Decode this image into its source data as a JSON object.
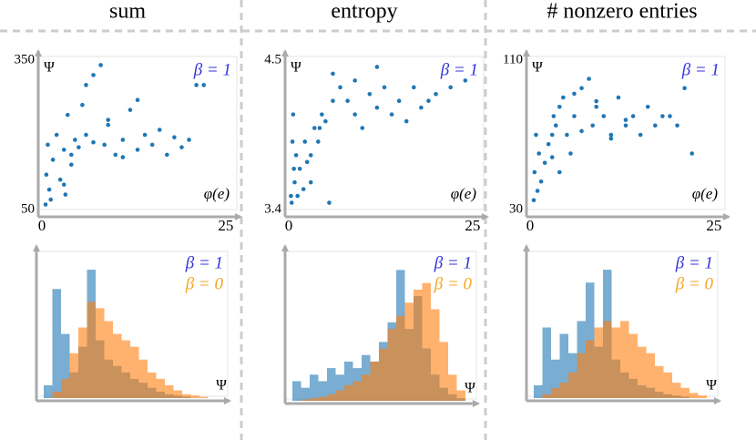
{
  "chart_data": [
    {
      "type": "scatter",
      "title": "sum",
      "x_label": "φ(e)",
      "y_label": "Ψ",
      "xlim": [
        0,
        26
      ],
      "ylim": [
        50,
        350
      ],
      "xticks": [
        0,
        25
      ],
      "yticks": [
        50,
        350
      ],
      "series": [
        {
          "name": "β = 1",
          "color": "#1f77b4",
          "legend_color": "#3333dd",
          "x": [
            0.5,
            0.6,
            0.8,
            1,
            1.2,
            1.5,
            2,
            2.5,
            3,
            3.2,
            3.5,
            4,
            4.5,
            5,
            5.5,
            6,
            7,
            8,
            8.5,
            9,
            10,
            11,
            12,
            13,
            14,
            15,
            16,
            17,
            18,
            19,
            20,
            21,
            4,
            6,
            9,
            13,
            22,
            7,
            3,
            11
          ],
          "y": [
            60,
            120,
            180,
            90,
            70,
            150,
            200,
            110,
            170,
            80,
            240,
            160,
            190,
            175,
            260,
            200,
            320,
            340,
            180,
            220,
            160,
            190,
            250,
            170,
            200,
            180,
            210,
            160,
            195,
            175,
            190,
            300,
            140,
            300,
            230,
            270,
            300,
            185,
            100,
            155
          ]
        }
      ]
    },
    {
      "type": "scatter",
      "title": "entropy",
      "x_label": "φ(e)",
      "y_label": "Ψ",
      "xlim": [
        0,
        26
      ],
      "ylim": [
        3.4,
        4.5
      ],
      "xticks": [
        0,
        25
      ],
      "yticks": [
        3.4,
        4.5
      ],
      "series": [
        {
          "name": "β = 1",
          "color": "#1f77b4",
          "legend_color": "#3333dd",
          "x": [
            0.3,
            0.5,
            0.6,
            0.8,
            1,
            1.2,
            1.5,
            2,
            2.5,
            3,
            3.5,
            4,
            4.5,
            5,
            5.5,
            6,
            7,
            8,
            9,
            10,
            11,
            12,
            13,
            14,
            15,
            16,
            17,
            18,
            19,
            20,
            22,
            24,
            3,
            6,
            9,
            12,
            0.4,
            0.7,
            2.2,
            4.2
          ],
          "y": [
            3.5,
            3.9,
            4.1,
            3.6,
            3.8,
            3.5,
            3.7,
            3.55,
            3.75,
            3.8,
            4.0,
            3.9,
            4.1,
            4.05,
            3.45,
            4.2,
            4.3,
            4.2,
            4.1,
            4.0,
            4.25,
            4.15,
            4.3,
            4.1,
            4.2,
            4.05,
            4.3,
            4.15,
            4.2,
            4.25,
            4.3,
            4.35,
            3.6,
            4.4,
            4.35,
            4.45,
            3.45,
            3.7,
            3.9,
            4.0
          ]
        }
      ]
    },
    {
      "type": "scatter",
      "title": "# nonzero entries",
      "x_label": "φ(e)",
      "y_label": "Ψ",
      "xlim": [
        0,
        26
      ],
      "ylim": [
        30,
        110
      ],
      "xticks": [
        0,
        25
      ],
      "yticks": [
        30,
        110
      ],
      "series": [
        {
          "name": "β = 1",
          "color": "#1f77b4",
          "legend_color": "#3333dd",
          "x": [
            0.5,
            0.6,
            0.8,
            1,
            1.2,
            1.5,
            2,
            2.5,
            3,
            3.2,
            3.5,
            4,
            4.5,
            5,
            5.5,
            6,
            7,
            8,
            8.5,
            9,
            10,
            11,
            12,
            13,
            14,
            15,
            16,
            17,
            18,
            19,
            20,
            21,
            4,
            6,
            9,
            13,
            22,
            7,
            3,
            11
          ],
          "y": [
            35,
            50,
            70,
            40,
            60,
            45,
            55,
            65,
            70,
            80,
            75,
            85,
            90,
            70,
            60,
            80,
            95,
            100,
            75,
            85,
            80,
            70,
            90,
            75,
            80,
            70,
            85,
            75,
            80,
            80,
            75,
            95,
            50,
            92,
            88,
            78,
            60,
            72,
            58,
            68
          ]
        }
      ]
    },
    {
      "type": "histogram",
      "x_label": "Ψ",
      "ylim": [
        0,
        110
      ],
      "bins": [
        50,
        65,
        80,
        95,
        110,
        125,
        140,
        155,
        170,
        185,
        200,
        215,
        230,
        245,
        260,
        275,
        290,
        305,
        320,
        335,
        350
      ],
      "series": [
        {
          "name": "β = 1",
          "color": "#1f77b4",
          "legend_color": "#3333dd",
          "values": [
            10,
            85,
            50,
            20,
            40,
            100,
            45,
            30,
            25,
            20,
            15,
            12,
            8,
            5,
            3,
            2,
            1,
            0,
            0,
            0
          ]
        },
        {
          "name": "β = 0",
          "color": "#ff7f0e",
          "legend_color": "#f5a623",
          "values": [
            0,
            5,
            15,
            35,
            55,
            75,
            70,
            60,
            50,
            45,
            40,
            30,
            20,
            15,
            10,
            6,
            3,
            2,
            1,
            0
          ]
        }
      ]
    },
    {
      "type": "histogram",
      "x_label": "Ψ",
      "ylim": [
        0,
        110
      ],
      "bins": [
        3.4,
        3.45,
        3.5,
        3.55,
        3.6,
        3.65,
        3.7,
        3.75,
        3.8,
        3.85,
        3.9,
        3.95,
        4.0,
        4.05,
        4.1,
        4.15,
        4.2,
        4.25,
        4.3,
        4.35,
        4.4
      ],
      "series": [
        {
          "name": "β = 1",
          "color": "#1f77b4",
          "legend_color": "#3333dd",
          "values": [
            15,
            10,
            20,
            15,
            25,
            20,
            30,
            25,
            35,
            30,
            45,
            60,
            100,
            55,
            80,
            40,
            20,
            10,
            5,
            2
          ]
        },
        {
          "name": "β = 0",
          "color": "#ff7f0e",
          "legend_color": "#f5a623",
          "values": [
            0,
            1,
            2,
            3,
            5,
            8,
            12,
            15,
            20,
            30,
            40,
            55,
            65,
            75,
            85,
            90,
            70,
            45,
            20,
            8
          ]
        }
      ]
    },
    {
      "type": "histogram",
      "x_label": "Ψ",
      "ylim": [
        0,
        110
      ],
      "bins": [
        30,
        34,
        38,
        42,
        46,
        50,
        54,
        58,
        62,
        66,
        70,
        74,
        78,
        82,
        86,
        90,
        94,
        98,
        102,
        106,
        110
      ],
      "series": [
        {
          "name": "β = 1",
          "color": "#1f77b4",
          "legend_color": "#3333dd",
          "values": [
            10,
            55,
            30,
            50,
            35,
            60,
            90,
            40,
            100,
            30,
            20,
            15,
            10,
            8,
            5,
            3,
            2,
            1,
            0,
            0
          ]
        },
        {
          "name": "β = 0",
          "color": "#ff7f0e",
          "legend_color": "#f5a623",
          "values": [
            0,
            3,
            8,
            12,
            20,
            35,
            45,
            55,
            60,
            55,
            60,
            50,
            40,
            35,
            25,
            20,
            12,
            8,
            4,
            2
          ]
        }
      ]
    }
  ]
}
